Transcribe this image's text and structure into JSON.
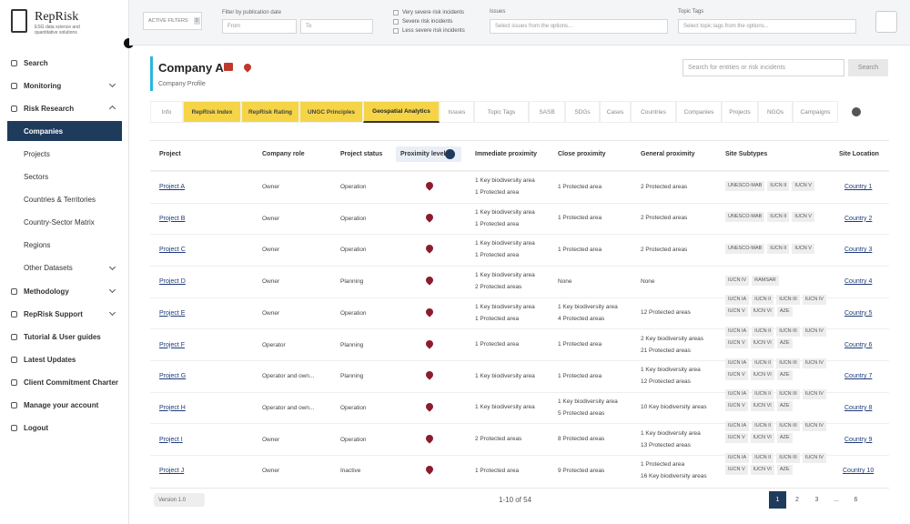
{
  "sidebar": {
    "logo": "RepRisk",
    "tagline": "ESG data science and quantitative solutions",
    "items": [
      {
        "label": "Search",
        "level": 0
      },
      {
        "label": "Monitoring",
        "level": 0,
        "chevron": "down"
      },
      {
        "label": "Risk Research",
        "level": 0,
        "chevron": "up"
      },
      {
        "label": "Companies",
        "level": 1,
        "active": true
      },
      {
        "label": "Projects",
        "level": 1
      },
      {
        "label": "Sectors",
        "level": 1
      },
      {
        "label": "Countries & Territories",
        "level": 1
      },
      {
        "label": "Country-Sector Matrix",
        "level": 1
      },
      {
        "label": "Regions",
        "level": 1
      },
      {
        "label": "Other Datasets",
        "level": 1,
        "chevron": "down"
      },
      {
        "label": "Methodology",
        "level": 0,
        "chevron": "down"
      },
      {
        "label": "RepRisk Support",
        "level": 0,
        "chevron": "down"
      },
      {
        "label": "Tutorial & User guides",
        "level": 0
      },
      {
        "label": "Latest Updates",
        "level": 0
      },
      {
        "label": "Client Commitment Charter",
        "level": 0
      },
      {
        "label": "Manage your account",
        "level": 0
      },
      {
        "label": "Logout",
        "level": 0
      }
    ]
  },
  "filters": {
    "active_filters": "ACTIVE FILTERS",
    "active_count": "0",
    "date_label": "Filter by publication date",
    "from": "From",
    "to": "To",
    "severity": [
      "Very severe risk incidents",
      "Severe risk incidents",
      "Less severe risk incidents"
    ],
    "issues_label": "Issues",
    "issues_placeholder": "Select issues from the options...",
    "tags_label": "Topic Tags",
    "tags_placeholder": "Select topic tags from the options..."
  },
  "header": {
    "title": "Company A",
    "subtitle": "Company Profile",
    "search_placeholder": "Search for entities or risk incidents",
    "search_button": "Search"
  },
  "tabs": [
    {
      "label": "Info"
    },
    {
      "label": "RepRisk Index",
      "highlight": true
    },
    {
      "label": "RepRisk Rating",
      "highlight": true
    },
    {
      "label": "UNGC Principles",
      "highlight": true
    },
    {
      "label": "Geospatial Analytics",
      "highlight": true,
      "active": true
    },
    {
      "label": "Issues"
    },
    {
      "label": "Topic Tags"
    },
    {
      "label": "SASB"
    },
    {
      "label": "SDGs"
    },
    {
      "label": "Cases"
    },
    {
      "label": "Countries"
    },
    {
      "label": "Companies"
    },
    {
      "label": "Projects"
    },
    {
      "label": "NGOs"
    },
    {
      "label": "Campaigns"
    }
  ],
  "table": {
    "columns": [
      "Project",
      "Company role",
      "Project status",
      "Proximity level",
      "Immediate proximity",
      "Close proximity",
      "General proximity",
      "Site Subtypes",
      "Site Location"
    ],
    "rows": [
      {
        "project": "Project A",
        "role": "Owner",
        "status": "Operation",
        "immediate": [
          "1 Key biodiversity area",
          "1 Protected area"
        ],
        "close": [
          "1 Protected area"
        ],
        "general": [
          "2 Protected areas"
        ],
        "subtypes": [
          "UNESCO-MAB",
          "IUCN II",
          "IUCN V"
        ],
        "location": "Country 1"
      },
      {
        "project": "Project B",
        "role": "Owner",
        "status": "Operation",
        "immediate": [
          "1 Key biodiversity area",
          "1 Protected area"
        ],
        "close": [
          "1 Protected area"
        ],
        "general": [
          "2 Protected areas"
        ],
        "subtypes": [
          "UNESCO-MAB",
          "IUCN II",
          "IUCN V"
        ],
        "location": "Country 2"
      },
      {
        "project": "Project C",
        "role": "Owner",
        "status": "Operation",
        "immediate": [
          "1 Key biodiversity area",
          "1 Protected area"
        ],
        "close": [
          "1 Protected area"
        ],
        "general": [
          "2 Protected areas"
        ],
        "subtypes": [
          "UNESCO-MAB",
          "IUCN II",
          "IUCN V"
        ],
        "location": "Country 3"
      },
      {
        "project": "Project D",
        "role": "Owner",
        "status": "Planning",
        "immediate": [
          "1 Key biodiversity area",
          "2 Protected areas"
        ],
        "close": [
          "None"
        ],
        "general": [
          "None"
        ],
        "subtypes": [
          "IUCN IV",
          "RAMSAR"
        ],
        "location": "Country 4"
      },
      {
        "project": "Project E",
        "role": "Owner",
        "status": "Operation",
        "immediate": [
          "1 Key biodiversity area",
          "1 Protected area"
        ],
        "close": [
          "1 Key biodiversity area",
          "4 Protected areas"
        ],
        "general": [
          "12 Protected areas"
        ],
        "subtypes": [
          "IUCN IA",
          "IUCN II",
          "IUCN III",
          "IUCN IV",
          "IUCN V",
          "IUCN VI",
          "AZE"
        ],
        "location": "Country 5"
      },
      {
        "project": "Project F",
        "role": "Operator",
        "status": "Planning",
        "immediate": [
          "1 Protected area"
        ],
        "close": [
          "1 Protected area"
        ],
        "general": [
          "2 Key biodiversity areas",
          "21 Protected areas"
        ],
        "subtypes": [
          "IUCN IA",
          "IUCN II",
          "IUCN III",
          "IUCN IV",
          "IUCN V",
          "IUCN VI",
          "AZE"
        ],
        "location": "Country 6"
      },
      {
        "project": "Project G",
        "role": "Operator and own...",
        "status": "Planning",
        "immediate": [
          "1 Key biodiversity area"
        ],
        "close": [
          "1 Protected area"
        ],
        "general": [
          "1 Key biodiversity area",
          "12 Protected areas"
        ],
        "subtypes": [
          "IUCN IA",
          "IUCN II",
          "IUCN III",
          "IUCN IV",
          "IUCN V",
          "IUCN VI",
          "AZE"
        ],
        "location": "Country 7"
      },
      {
        "project": "Project H",
        "role": "Operator and own...",
        "status": "Operation",
        "immediate": [
          "1 Key biodiversity area"
        ],
        "close": [
          "1 Key biodiversity area",
          "5 Protected areas"
        ],
        "general": [
          "10 Key biodiversity areas"
        ],
        "subtypes": [
          "IUCN IA",
          "IUCN II",
          "IUCN III",
          "IUCN IV",
          "IUCN V",
          "IUCN VI",
          "AZE"
        ],
        "location": "Country 8"
      },
      {
        "project": "Project I",
        "role": "Owner",
        "status": "Operation",
        "immediate": [
          "2 Protected areas"
        ],
        "close": [
          "8 Protected areas"
        ],
        "general": [
          "1 Key biodiversity area",
          "13 Protected areas"
        ],
        "subtypes": [
          "IUCN IA",
          "IUCN II",
          "IUCN III",
          "IUCN IV",
          "IUCN V",
          "IUCN VI",
          "AZE"
        ],
        "location": "Country 9"
      },
      {
        "project": "Project J",
        "role": "Owner",
        "status": "Inactive",
        "immediate": [
          "1 Protected area"
        ],
        "close": [
          "9 Protected areas"
        ],
        "general": [
          "1 Protected area",
          "16 Key biodiversity areas"
        ],
        "subtypes": [
          "IUCN IA",
          "IUCN II",
          "IUCN III",
          "IUCN IV",
          "IUCN V",
          "IUCN VI",
          "AZE"
        ],
        "location": "Country 10"
      }
    ]
  },
  "footer": {
    "version": "Version 1.0",
    "range": "1-10 of 54",
    "pages": [
      "1",
      "2",
      "3",
      "...",
      "6"
    ]
  }
}
